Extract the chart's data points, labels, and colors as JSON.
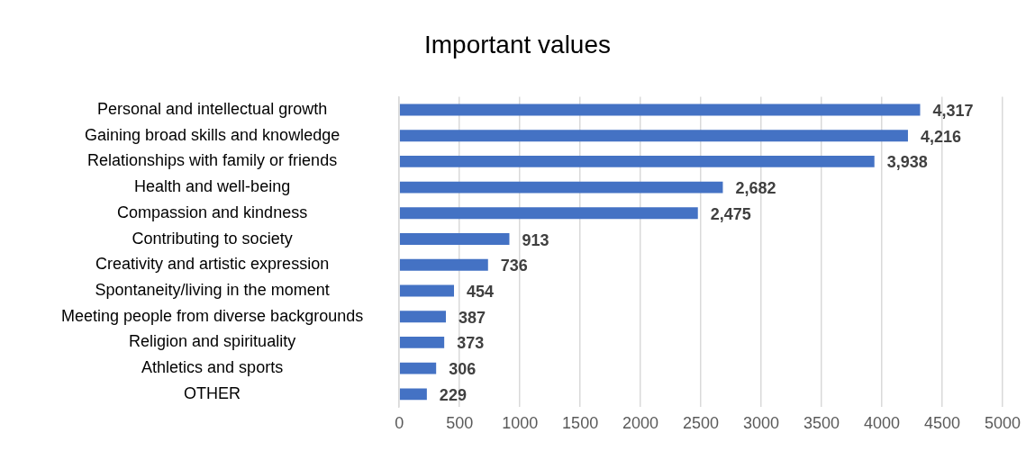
{
  "chart_data": {
    "type": "bar",
    "orientation": "horizontal",
    "title": "Important values",
    "categories": [
      "Personal and intellectual growth",
      "Gaining broad skills and knowledge",
      "Relationships with family or friends",
      "Health and well-being",
      "Compassion and kindness",
      "Contributing to society",
      "Creativity and artistic expression",
      "Spontaneity/living in the moment",
      "Meeting people from diverse backgrounds",
      "Religion and spirituality",
      "Athletics and sports",
      "OTHER"
    ],
    "values": [
      4317,
      4216,
      3938,
      2682,
      2475,
      913,
      736,
      454,
      387,
      373,
      306,
      229
    ],
    "value_labels": [
      "4,317",
      "4,216",
      "3,938",
      "2,682",
      "2,475",
      "913",
      "736",
      "454",
      "387",
      "373",
      "306",
      "229"
    ],
    "color": "#4472c4",
    "xlim": [
      0,
      5000
    ],
    "xticks": [
      0,
      500,
      1000,
      1500,
      2000,
      2500,
      3000,
      3500,
      4000,
      4500,
      5000
    ],
    "grid": "x",
    "legend": false
  }
}
